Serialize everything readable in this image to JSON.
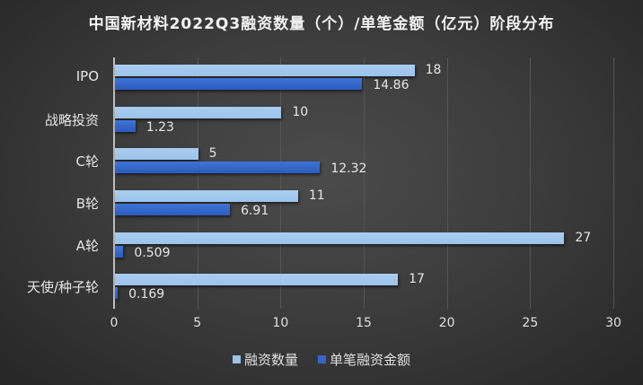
{
  "chart_data": {
    "type": "bar",
    "orientation": "horizontal",
    "title": "中国新材料2022Q3融资数量（个）/单笔金额（亿元）阶段分布",
    "categories": [
      "IPO",
      "战略投资",
      "C轮",
      "B轮",
      "A轮",
      "天使/种子轮"
    ],
    "series": [
      {
        "name": "融资数量",
        "color": "#9dc3e6",
        "values": [
          18,
          10,
          5,
          11,
          27,
          17
        ],
        "labels": [
          "18",
          "10",
          "5",
          "11",
          "27",
          "17"
        ]
      },
      {
        "name": "单笔融资金额",
        "color": "#3366cc",
        "values": [
          14.86,
          1.23,
          12.32,
          6.91,
          0.509,
          0.169
        ],
        "labels": [
          "14.86",
          "1.23",
          "12.32",
          "6.91",
          "0.509",
          "0.169"
        ]
      }
    ],
    "xlim": [
      0,
      30
    ],
    "xticks": [
      "0",
      "5",
      "10",
      "15",
      "20",
      "25",
      "30"
    ],
    "grid": true,
    "legend_position": "bottom",
    "xlabel": "",
    "ylabel": ""
  },
  "legend": {
    "items": [
      {
        "label": "融资数量",
        "color": "#9dc3e6"
      },
      {
        "label": "单笔融资金额",
        "color": "#3366cc"
      }
    ]
  }
}
